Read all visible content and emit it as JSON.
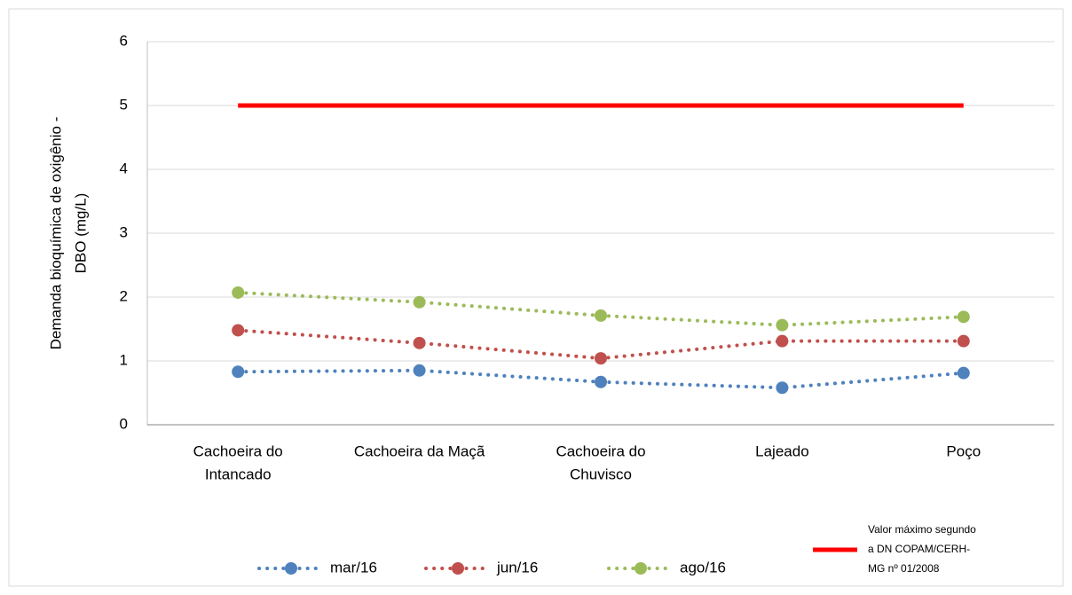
{
  "chart_data": {
    "type": "line",
    "y_label": [
      "Demanda bioquímica de oxigênio -",
      "DBO (mg/L)"
    ],
    "categories": [
      [
        "Cachoeira do",
        "Intancado"
      ],
      [
        "Cachoeira da Maçã"
      ],
      [
        "Cachoeira do",
        "Chuvisco"
      ],
      [
        "Lajeado"
      ],
      [
        "Poço"
      ]
    ],
    "series": [
      {
        "name": "mar/16",
        "color": "#4f81bd",
        "style": "dotted",
        "markers": true,
        "values": [
          0.83,
          0.85,
          0.67,
          0.58,
          0.81
        ]
      },
      {
        "name": "jun/16",
        "color": "#c0504d",
        "style": "dotted",
        "markers": true,
        "values": [
          1.48,
          1.28,
          1.04,
          1.31,
          1.31
        ]
      },
      {
        "name": "ago/16",
        "color": "#9bbb59",
        "style": "dotted",
        "markers": true,
        "values": [
          2.07,
          1.92,
          1.71,
          1.56,
          1.69
        ]
      },
      {
        "name": "Valor máximo segundo a DN  COPAM/CERH-MG nº 01/2008",
        "color": "#ff0000",
        "style": "solid",
        "markers": false,
        "values": [
          5,
          5,
          5,
          5,
          5
        ]
      }
    ],
    "ylim": [
      0,
      6
    ],
    "yticks": [
      0,
      1,
      2,
      3,
      4,
      5,
      6
    ],
    "grid": true,
    "legend": "bottom"
  }
}
